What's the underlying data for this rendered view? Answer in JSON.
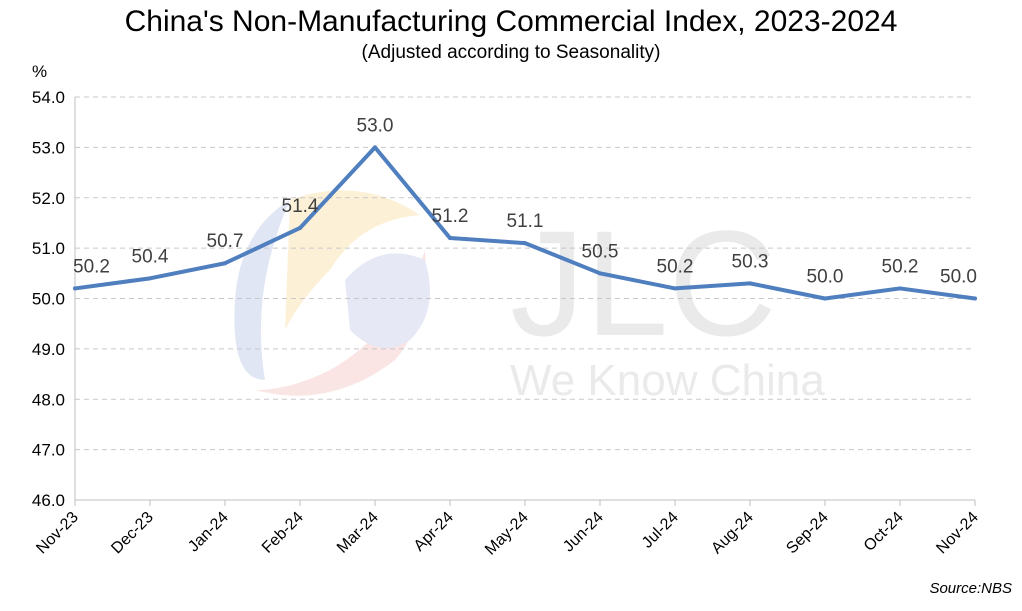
{
  "chart_data": {
    "type": "line",
    "title": "China's Non-Manufacturing Commercial Index, 2023-2024",
    "subtitle": "(Adjusted according to Seasonality)",
    "ylabel": "%",
    "xlabel": "",
    "categories": [
      "Nov-23",
      "Dec-23",
      "Jan-24",
      "Feb-24",
      "Mar-24",
      "Apr-24",
      "May-24",
      "Jun-24",
      "Jul-24",
      "Aug-24",
      "Sep-24",
      "Oct-24",
      "Nov-24"
    ],
    "series": [
      {
        "values": [
          50.2,
          50.4,
          50.7,
          51.4,
          53.0,
          51.2,
          51.1,
          50.5,
          50.2,
          50.3,
          50.0,
          50.2,
          50.0
        ]
      }
    ],
    "ylim": [
      46.0,
      54.0
    ],
    "yticks": [
      46.0,
      47.0,
      48.0,
      49.0,
      50.0,
      51.0,
      52.0,
      53.0,
      54.0
    ],
    "grid": "horizontal dashed",
    "data_labels": true,
    "legend": "none",
    "line_color": "#4f7fbf"
  },
  "source": "Source:NBS",
  "watermark": {
    "logo_text": "JLC",
    "tagline": "We Know China"
  }
}
